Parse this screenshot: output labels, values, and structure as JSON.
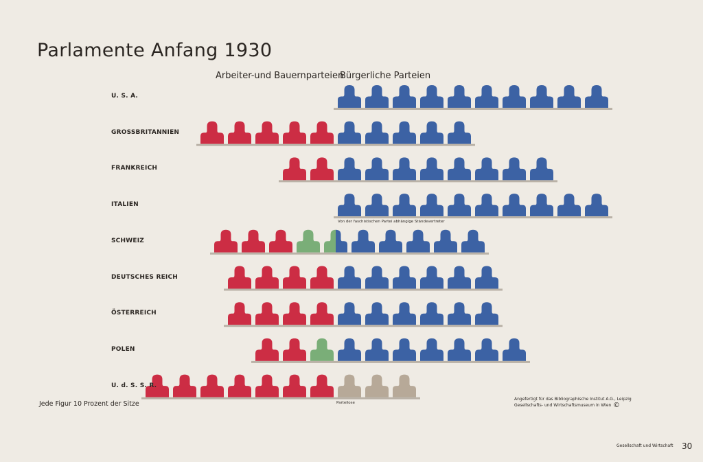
{
  "page": {
    "title": "Parlamente Anfang 1930",
    "group_labels": [
      "Arbeiter-und Bauernparteien",
      "Bürgerliche Parteien"
    ],
    "legend_note": "Jede Figur 10 Prozent der Sitze",
    "credit_line1": "Angefertigt für das Bibliographische Institut A.G., Leipzig",
    "credit_line2": "Gesellschafts- und Wirtschaftsmuseum in Wien",
    "copyright": "©",
    "footer": "Gesellschaft und Wirtschaft",
    "page_number": "30"
  },
  "colors": {
    "background": "#efebe4",
    "red": "#cc2d44",
    "blue": "#3c62a4",
    "green": "#7aae78",
    "tan": "#b7a998",
    "bench": "#bab2a7",
    "text": "#2b2622"
  },
  "chart_data": {
    "type": "isotype",
    "title": "Parlamente Anfang 1930",
    "unit": "Jede Figur 10 Prozent der Sitze",
    "series": [
      {
        "name": "Arbeiter-und Bauernparteien",
        "color": "red"
      },
      {
        "name": "Bürgerliche Parteien",
        "color": "blue"
      }
    ],
    "rows": [
      {
        "country": "U. S. A.",
        "segments": [
          {
            "color": "blue",
            "count": 10
          }
        ],
        "note": ""
      },
      {
        "country": "GROSSBRITANNIEN",
        "segments": [
          {
            "color": "red",
            "count": 5
          },
          {
            "color": "blue",
            "count": 5
          }
        ],
        "note": ""
      },
      {
        "country": "FRANKREICH",
        "segments": [
          {
            "color": "red",
            "count": 2
          },
          {
            "color": "blue",
            "count": 8
          }
        ],
        "note": ""
      },
      {
        "country": "ITALIEN",
        "segments": [
          {
            "color": "blue",
            "count": 10
          }
        ],
        "note": "Von der faschistischen Partei abhängige Ständevertreter"
      },
      {
        "country": "SCHWEIZ",
        "segments": [
          {
            "color": "red",
            "count": 3
          },
          {
            "color": "green",
            "count": 1.5
          },
          {
            "color": "blue",
            "count": 5.5
          }
        ],
        "note": ""
      },
      {
        "country": "DEUTSCHES REICH",
        "segments": [
          {
            "color": "red",
            "count": 4
          },
          {
            "color": "blue",
            "count": 6
          }
        ],
        "note": ""
      },
      {
        "country": "ÖSTERREICH",
        "segments": [
          {
            "color": "red",
            "count": 4
          },
          {
            "color": "blue",
            "count": 6
          }
        ],
        "note": ""
      },
      {
        "country": "POLEN",
        "segments": [
          {
            "color": "red",
            "count": 2
          },
          {
            "color": "green",
            "count": 1
          },
          {
            "color": "blue",
            "count": 7
          }
        ],
        "note": ""
      },
      {
        "country": "U. d. S. S. R.",
        "segments": [
          {
            "color": "red",
            "count": 7
          },
          {
            "color": "tan",
            "count": 3
          }
        ],
        "note": "Parteilose"
      }
    ]
  }
}
